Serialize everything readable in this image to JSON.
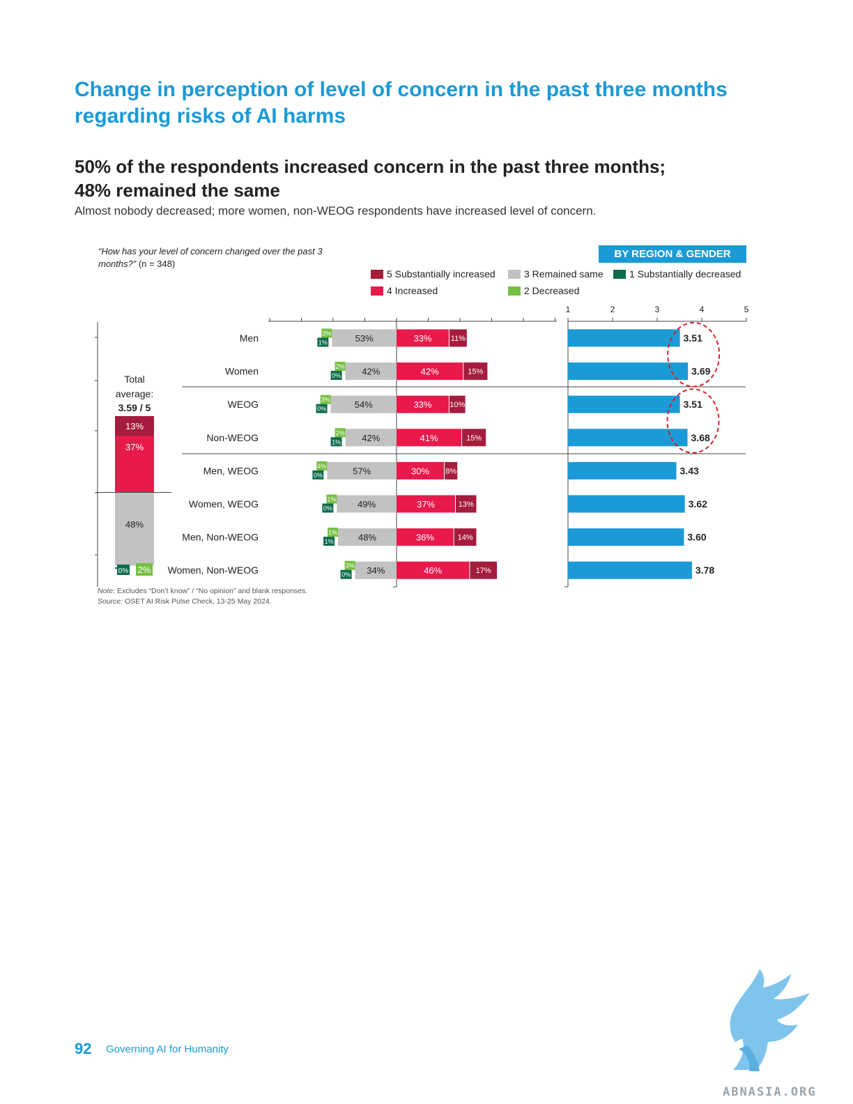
{
  "title": "Change in perception of level of concern in the past three months regarding risks of AI harms",
  "headline_line1": "50% of the respondents increased concern in the past three months;",
  "headline_line2": "48% remained the same",
  "subtext": "Almost nobody decreased; more women, non-WEOG respondents have increased level of concern.",
  "question_text": "“How has your level of concern changed over the past 3 months?”",
  "question_n": " (n = 348)",
  "region_badge": "BY REGION & GENDER",
  "legend": [
    {
      "label": "5 Substantially increased",
      "color": "#a61c3c"
    },
    {
      "label": "4 Increased",
      "color": "#e8194b"
    },
    {
      "label": "3 Remained same",
      "color": "#c2c2c2"
    },
    {
      "label": "2 Decreased",
      "color": "#76c043"
    },
    {
      "label": "1 Substantially decreased",
      "color": "#0e6b4a"
    }
  ],
  "chart_data": [
    {
      "type": "bar",
      "subtype": "stacked-total",
      "label_line1": "Total",
      "label_line2": "average:",
      "label_value": "3.59 / 5",
      "segments": [
        {
          "name": "5 Substantially increased",
          "value": 13,
          "label": "13%"
        },
        {
          "name": "4 Increased",
          "value": 37,
          "label": "37%"
        },
        {
          "name": "3 Remained same",
          "value": 48,
          "label": "48%"
        },
        {
          "name": "2 Decreased",
          "value": 2,
          "label": "2%"
        },
        {
          "name": "1 Substantially decreased",
          "value": 0,
          "label": "0%"
        }
      ]
    },
    {
      "type": "bar",
      "subtype": "diverging-stacked",
      "categories": [
        "Men",
        "Women",
        "WEOG",
        "Non-WEOG",
        "Men, WEOG",
        "Women, WEOG",
        "Men, Non-WEOG",
        "Women, Non-WEOG"
      ],
      "series": [
        {
          "name": "5 Substantially increased",
          "values": [
            11,
            15,
            10,
            15,
            8,
            13,
            14,
            17
          ],
          "labels": [
            "11%",
            "15%",
            "10%",
            "15%",
            "8%",
            "13%",
            "14%",
            "17%"
          ]
        },
        {
          "name": "4 Increased",
          "values": [
            33,
            42,
            33,
            41,
            30,
            37,
            36,
            46
          ],
          "labels": [
            "33%",
            "42%",
            "33%",
            "41%",
            "30%",
            "37%",
            "36%",
            "46%"
          ]
        },
        {
          "name": "3 Remained same",
          "values": [
            53,
            42,
            54,
            42,
            57,
            49,
            48,
            34
          ],
          "labels": [
            "53%",
            "42%",
            "54%",
            "42%",
            "57%",
            "49%",
            "48%",
            "34%"
          ]
        },
        {
          "name": "2 Decreased",
          "values": [
            3,
            2,
            3,
            2,
            4,
            1,
            1,
            3
          ],
          "labels": [
            "3%",
            "2%",
            "3%",
            "2%",
            "4%",
            "1%",
            "1%",
            "3%"
          ]
        },
        {
          "name": "1 Substantially decreased",
          "values": [
            1,
            0,
            0,
            1,
            0,
            0,
            1,
            0
          ],
          "labels": [
            "1%",
            "0%",
            "0%",
            "1%",
            "0%",
            "0%",
            "1%",
            "0%"
          ]
        }
      ]
    },
    {
      "type": "bar",
      "subtype": "horizontal",
      "categories": [
        "Men",
        "Women",
        "WEOG",
        "Non-WEOG",
        "Men, WEOG",
        "Women, WEOG",
        "Men, Non-WEOG",
        "Women, Non-WEOG"
      ],
      "values": [
        3.51,
        3.69,
        3.51,
        3.68,
        3.43,
        3.62,
        3.6,
        3.78
      ],
      "labels": [
        "3.51",
        "3.69",
        "3.51",
        "3.68",
        "3.43",
        "3.62",
        "3.60",
        "3.78"
      ],
      "xlim": [
        1,
        5
      ],
      "xticks": [
        "1",
        "2",
        "3",
        "4",
        "5"
      ],
      "highlighted_pairs": [
        [
          0,
          1
        ],
        [
          2,
          3
        ]
      ],
      "color": "#1a9ad6"
    }
  ],
  "note_label": "Note:",
  "note_text": " Excludes “Don’t know” / “No opinion” and blank responses.",
  "source_label": "Source:",
  "source_text": " OSET AI Risk Pulse Check, 13-25 May 2024.",
  "footer_page": "92",
  "footer_title": "Governing AI for Humanity",
  "watermark": "ABNASIA.ORG"
}
